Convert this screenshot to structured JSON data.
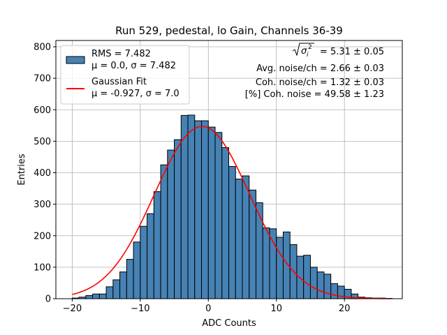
{
  "chart_data": {
    "type": "bar",
    "title": "Run 529, pedestal, lo Gain, Channels 36-39",
    "xlabel": "ADC Counts",
    "ylabel": "Entries",
    "xlim": [
      -22.4,
      28.5
    ],
    "ylim": [
      0,
      820
    ],
    "xticks": [
      -20,
      -10,
      0,
      10,
      20
    ],
    "xtick_labels": [
      "−20",
      "−10",
      "0",
      "10",
      "20"
    ],
    "yticks": [
      0,
      100,
      200,
      300,
      400,
      500,
      600,
      700,
      800
    ],
    "grid": true,
    "legend_position": "top-left",
    "bin_width": 1,
    "bins_left_edges": [
      -20,
      -19,
      -18,
      -17,
      -16,
      -15,
      -14,
      -13,
      -12,
      -11,
      -10,
      -9,
      -8,
      -7,
      -6,
      -5,
      -4,
      -3,
      -2,
      -1,
      0,
      1,
      2,
      3,
      4,
      5,
      6,
      7,
      8,
      9,
      10,
      11,
      12,
      13,
      14,
      15,
      16,
      17,
      18,
      19,
      20,
      21,
      22,
      23,
      24,
      25,
      26
    ],
    "series": [
      {
        "name": "RMS = 7.482",
        "name_line2": "μ = 0.0, σ = 7.482",
        "kind": "histogram",
        "color": "#4682b4",
        "edgecolor": "#000000",
        "values": [
          2,
          5,
          10,
          15,
          15,
          38,
          60,
          85,
          125,
          180,
          230,
          270,
          340,
          425,
          472,
          505,
          582,
          583,
          565,
          565,
          545,
          528,
          480,
          420,
          380,
          390,
          345,
          305,
          225,
          222,
          195,
          212,
          172,
          135,
          138,
          100,
          85,
          78,
          48,
          40,
          30,
          15,
          5,
          3,
          2,
          2,
          1
        ]
      },
      {
        "name": "Gaussian Fit",
        "name_line2": "μ = -0.927, σ = 7.0",
        "kind": "line",
        "color": "#ff0000",
        "mu": -0.927,
        "sigma": 7.0,
        "amplitude": 547,
        "x_range": [
          -20,
          26.5
        ]
      }
    ],
    "annotations": [
      {
        "text": "= 5.31 ± 0.05",
        "prefix": "sqrt-sigma-i-squared"
      },
      {
        "text": "Avg. noise/ch = 2.66 ± 0.03"
      },
      {
        "text": "Coh. noise/ch = 1.32 ± 0.03"
      },
      {
        "text": "[%] Coh. noise = 49.58 ± 1.23"
      }
    ]
  }
}
